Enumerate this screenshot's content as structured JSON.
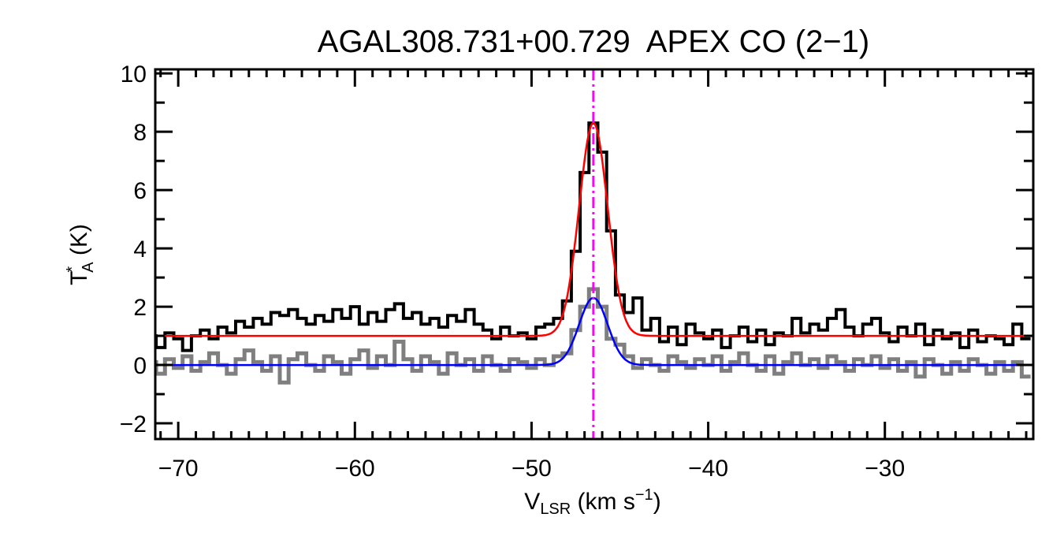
{
  "chart_data": {
    "type": "line",
    "title": "AGAL308.731+00.729  APEX CO (2−1)",
    "xlabel": {
      "main": "V",
      "sub": "LSR",
      "rest": " (km s",
      "sup": "−1",
      "end": ")"
    },
    "ylabel": {
      "main": "T",
      "sup": "*",
      "sub": "A",
      "rest": " (K)"
    },
    "xlim": [
      -71.3,
      -21.6
    ],
    "ylim": [
      -2.54,
      10.14
    ],
    "xticks": [
      -70,
      -60,
      -50,
      -40,
      -30
    ],
    "xtick_labels": [
      "−70",
      "−60",
      "−50",
      "−40",
      "−30"
    ],
    "yticks": [
      -2,
      0,
      2,
      4,
      6,
      8,
      10
    ],
    "ytick_labels": [
      "−2",
      "0",
      "2",
      "4",
      "6",
      "8",
      "10"
    ],
    "x_minor_step": 1,
    "y_minor_step": 1,
    "grid": false,
    "channel_start": -72,
    "channel_step": 0.5,
    "series": [
      {
        "name": "spectrum-offset",
        "color": "#000000",
        "style": "step",
        "values": [
          0.8,
          1.0,
          0.6,
          1.1,
          0.9,
          0.5,
          1.0,
          1.2,
          0.9,
          1.3,
          1.1,
          1.5,
          1.3,
          1.6,
          1.4,
          1.8,
          1.7,
          1.9,
          1.6,
          1.4,
          1.7,
          1.5,
          1.9,
          1.6,
          2.0,
          1.4,
          1.8,
          1.5,
          1.9,
          2.1,
          1.6,
          1.8,
          1.4,
          1.6,
          1.3,
          1.7,
          1.5,
          1.9,
          1.4,
          1.2,
          0.9,
          1.3,
          1.0,
          1.1,
          0.9,
          1.3,
          1.4,
          1.6,
          2.2,
          3.9,
          6.6,
          8.3,
          7.3,
          4.6,
          2.4,
          1.8,
          2.3,
          1.2,
          1.6,
          0.8,
          1.3,
          0.7,
          1.4,
          1.1,
          0.9,
          1.2,
          0.6,
          1.0,
          1.3,
          0.8,
          1.2,
          0.7,
          1.1,
          1.0,
          1.6,
          1.1,
          1.4,
          1.2,
          1.6,
          1.9,
          1.3,
          1.0,
          1.4,
          1.6,
          1.1,
          0.8,
          1.3,
          1.0,
          1.4,
          0.7,
          1.2,
          0.9,
          1.1,
          0.6,
          1.2,
          0.8,
          1.0,
          0.9,
          0.7,
          1.4,
          0.9
        ]
      },
      {
        "name": "spectrum",
        "color": "#7f7f7f",
        "style": "step",
        "values": [
          -0.2,
          0.1,
          -0.3,
          0.2,
          -0.1,
          0.3,
          -0.2,
          0.1,
          0.4,
          0.0,
          -0.3,
          0.2,
          0.5,
          0.1,
          -0.2,
          0.3,
          -0.6,
          0.2,
          0.4,
          0.0,
          -0.2,
          0.3,
          0.1,
          -0.3,
          0.2,
          0.5,
          -0.1,
          0.3,
          0.0,
          0.8,
          0.2,
          -0.2,
          0.3,
          0.1,
          -0.3,
          0.4,
          0.0,
          0.2,
          -0.2,
          0.3,
          0.0,
          -0.2,
          0.2,
          0.1,
          -0.1,
          0.2,
          0.0,
          0.3,
          0.4,
          1.2,
          2.0,
          2.6,
          2.0,
          0.9,
          0.7,
          0.3,
          -0.1,
          0.2,
          0.0,
          -0.2,
          0.3,
          0.1,
          -0.1,
          0.2,
          0.0,
          0.3,
          -0.2,
          0.1,
          0.4,
          0.0,
          -0.2,
          0.3,
          -0.3,
          0.1,
          0.4,
          0.0,
          0.2,
          -0.1,
          0.3,
          0.1,
          -0.2,
          0.2,
          0.0,
          0.3,
          -0.1,
          0.2,
          -0.2,
          0.1,
          -0.4,
          0.2,
          0.0,
          -0.3,
          0.1,
          -0.2,
          0.2,
          0.0,
          -0.3,
          0.1,
          -0.2,
          0.1,
          -0.4
        ]
      },
      {
        "name": "gaussian-fit-offset",
        "color": "#ff0000",
        "style": "gaussian",
        "amplitude": 7.3,
        "center": -46.5,
        "fwhm": 1.9,
        "baseline": 1.0
      },
      {
        "name": "gaussian-fit",
        "color": "#0000ff",
        "style": "gaussian",
        "amplitude": 2.3,
        "center": -46.5,
        "fwhm": 1.9,
        "baseline": 0.0
      }
    ],
    "vline": {
      "x": -46.5,
      "color": "#ff00ff",
      "style": "dash-dot"
    }
  }
}
